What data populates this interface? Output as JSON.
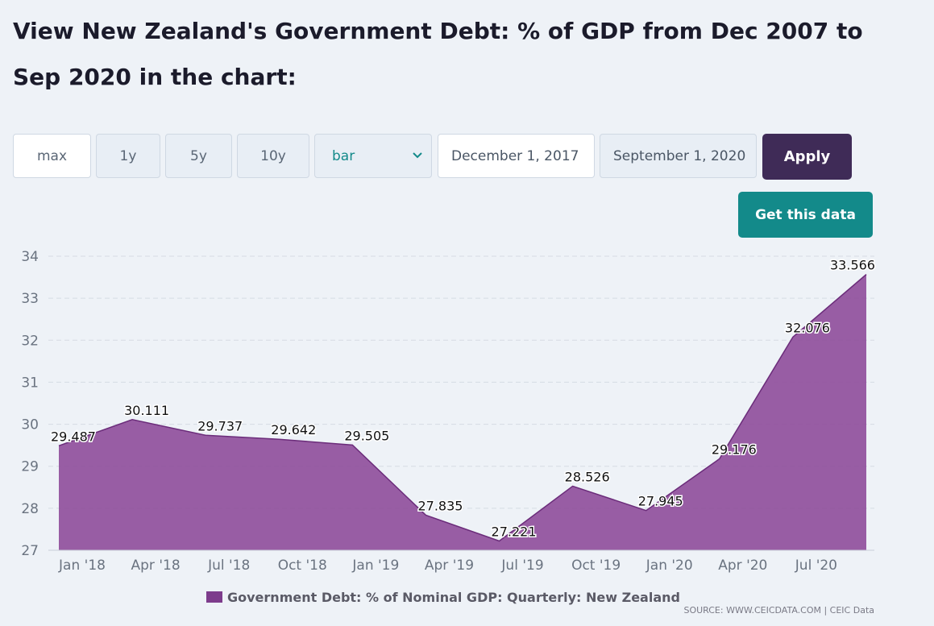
{
  "header": {
    "title": "View New Zealand's Government Debt: % of GDP from Dec 2007 to Sep 2020 in the chart:"
  },
  "controls": {
    "range_buttons": [
      "max",
      "1y",
      "5y",
      "10y"
    ],
    "active_range": "max",
    "chart_type_value": "bar",
    "start_date": "December 1, 2017",
    "end_date": "September 1, 2020",
    "apply_label": "Apply",
    "get_data_label": "Get this data"
  },
  "colors": {
    "area_fill": "#8e4d9a",
    "area_line": "#6b2c7a",
    "apply_bg": "#3f2b57",
    "get_data_bg": "#138a8a",
    "legend_swatch": "#7d3c8c"
  },
  "chart_data": {
    "type": "area",
    "x": [
      "Dec 2017",
      "Mar 2018",
      "Jun 2018",
      "Sep 2018",
      "Dec 2018",
      "Mar 2019",
      "Jun 2019",
      "Sep 2019",
      "Dec 2019",
      "Mar 2020",
      "Jun 2020",
      "Sep 2020"
    ],
    "series": [
      {
        "name": "Government Debt: % of Nominal GDP: Quarterly: New Zealand",
        "values": [
          29.487,
          30.111,
          29.737,
          29.642,
          29.505,
          27.835,
          27.221,
          28.526,
          27.945,
          29.176,
          32.076,
          33.566
        ],
        "labels": [
          "29.487",
          "30.111",
          "29.737",
          "29.642",
          "29.505",
          "27.835",
          "27.221",
          "28.526",
          "27.945",
          "29.176",
          "32.076",
          "33.566"
        ]
      }
    ],
    "x_tick_labels": [
      "Jan '18",
      "Apr '18",
      "Jul '18",
      "Oct '18",
      "Jan '19",
      "Apr '19",
      "Jul '19",
      "Oct '19",
      "Jan '20",
      "Apr '20",
      "Jul '20"
    ],
    "y_ticks": [
      "27",
      "28",
      "29",
      "30",
      "31",
      "32",
      "33",
      "34"
    ],
    "ylim": [
      27,
      34
    ],
    "grid": "horizontal dashed",
    "legend_position": "bottom-center",
    "source": "SOURCE: WWW.CEICDATA.COM | CEIC Data"
  }
}
